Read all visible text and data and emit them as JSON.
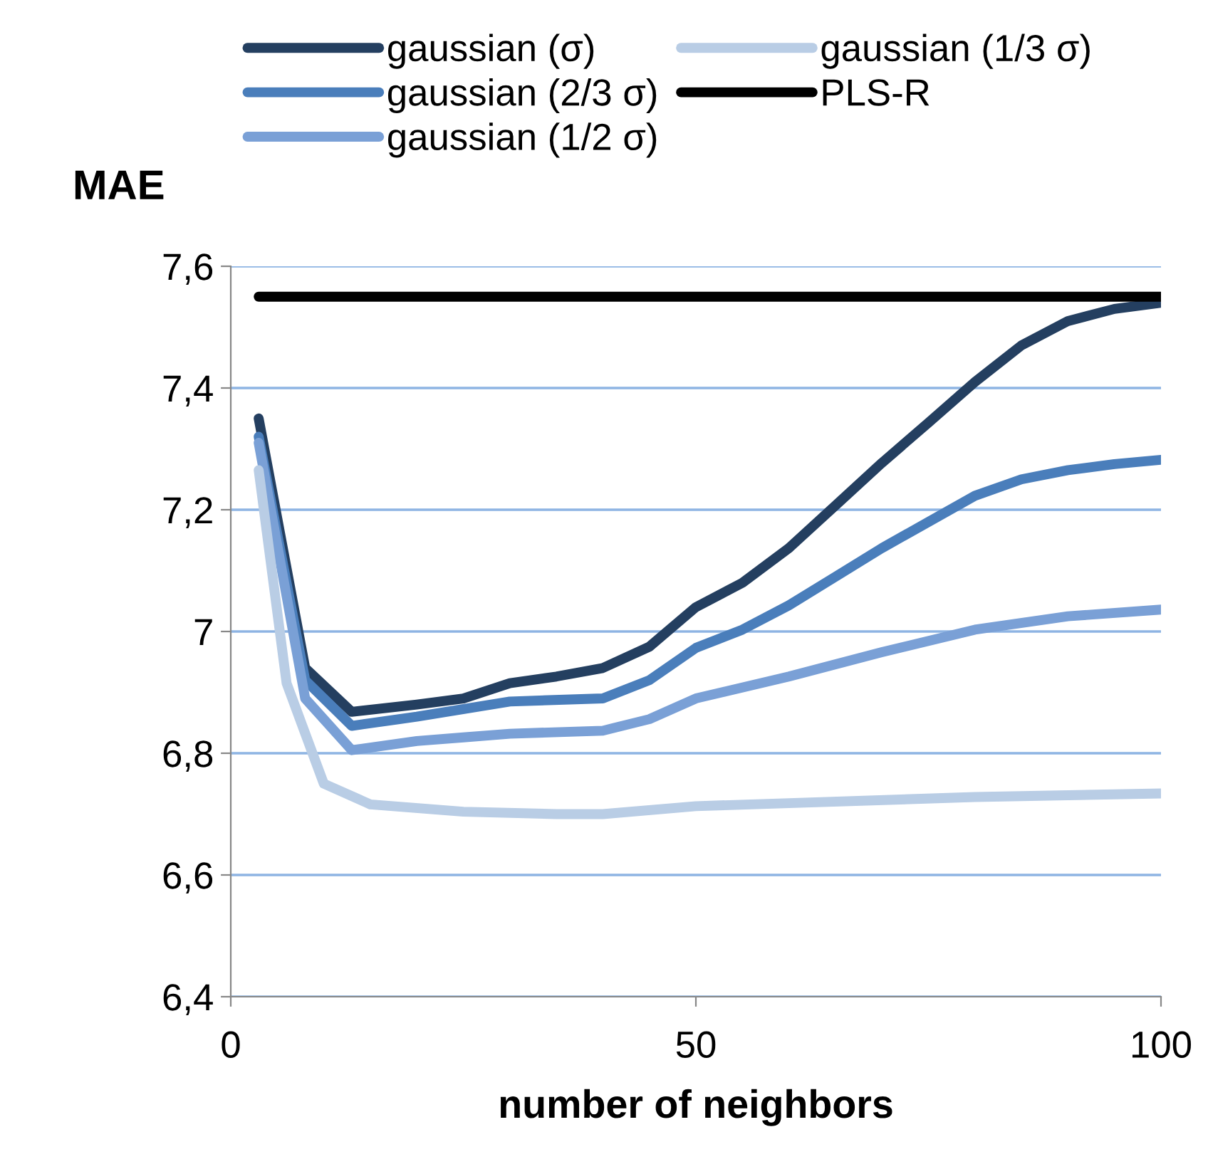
{
  "chart_data": {
    "type": "line",
    "xlabel": "number of neighbors",
    "ylabel": "MAE",
    "xlim": [
      0,
      100
    ],
    "xticks": [
      0,
      50,
      100
    ],
    "ylim": [
      6.4,
      7.6
    ],
    "yticks": [
      {
        "value": 6.4,
        "label": "6,4"
      },
      {
        "value": 6.6,
        "label": "6,6"
      },
      {
        "value": 6.8,
        "label": "6,8"
      },
      {
        "value": 7,
        "label": "7"
      },
      {
        "value": 7.2,
        "label": "7,2"
      },
      {
        "value": 7.4,
        "label": "7,4"
      },
      {
        "value": 7.6,
        "label": "7,6"
      }
    ],
    "grid": "y",
    "legend": "top",
    "marker": "none",
    "line_style": "solid",
    "series": [
      {
        "name": "gaussian (σ)",
        "color": "#243f60",
        "x": [
          3,
          8,
          13,
          20,
          25,
          30,
          35,
          40,
          45,
          50,
          55,
          60,
          65,
          70,
          75,
          80,
          85,
          90,
          95,
          100
        ],
        "values": [
          7.35,
          6.94,
          6.868,
          6.88,
          6.89,
          6.915,
          6.926,
          6.94,
          6.975,
          7.04,
          7.08,
          7.137,
          7.207,
          7.277,
          7.343,
          7.41,
          7.47,
          7.51,
          7.53,
          7.54
        ]
      },
      {
        "name": "gaussian (2/3 σ)",
        "color": "#4a7ebb",
        "x": [
          3,
          8,
          13,
          20,
          30,
          40,
          45,
          50,
          55,
          60,
          65,
          70,
          75,
          80,
          85,
          90,
          95,
          100
        ],
        "values": [
          7.32,
          6.92,
          6.845,
          6.86,
          6.885,
          6.89,
          6.92,
          6.973,
          7.003,
          7.043,
          7.09,
          7.137,
          7.18,
          7.223,
          7.25,
          7.265,
          7.275,
          7.282
        ]
      },
      {
        "name": "gaussian (1/2 σ)",
        "color": "#7aa0d6",
        "x": [
          3,
          8,
          13,
          20,
          25,
          30,
          40,
          45,
          50,
          60,
          70,
          80,
          90,
          100
        ],
        "values": [
          7.31,
          6.89,
          6.805,
          6.82,
          6.826,
          6.832,
          6.837,
          6.856,
          6.89,
          6.926,
          6.966,
          7.003,
          7.025,
          7.036
        ]
      },
      {
        "name": "gaussian (1/3 σ)",
        "color": "#b9cde5",
        "x": [
          3,
          6,
          10,
          15,
          25,
          35,
          40,
          50,
          60,
          80,
          100
        ],
        "values": [
          7.265,
          6.915,
          6.75,
          6.716,
          6.704,
          6.7,
          6.7,
          6.713,
          6.718,
          6.728,
          6.734
        ]
      },
      {
        "name": "PLS-R",
        "color": "#000000",
        "x": [
          3,
          100
        ],
        "values": [
          7.55,
          7.55
        ]
      }
    ]
  }
}
